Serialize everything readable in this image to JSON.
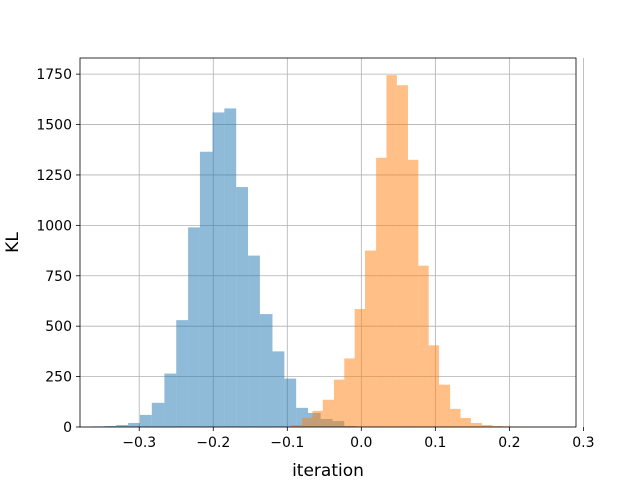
{
  "chart_data": {
    "type": "histogram",
    "xlabel": "iteration",
    "ylabel": "KL",
    "xlim": [
      -0.38,
      0.29
    ],
    "ylim": [
      0,
      1830
    ],
    "xticks": [
      -0.3,
      -0.2,
      -0.1,
      0.0,
      0.1,
      0.2,
      0.3
    ],
    "xtick_labels": [
      "−0.3",
      "−0.2",
      "−0.1",
      "0.0",
      "0.1",
      "0.2",
      "0.3"
    ],
    "yticks": [
      0,
      250,
      500,
      750,
      1000,
      1250,
      1500,
      1750
    ],
    "ytick_labels": [
      "0",
      "250",
      "500",
      "750",
      "1000",
      "1250",
      "1500",
      "1750"
    ],
    "grid": true,
    "series": [
      {
        "color": "#1f77b4",
        "alpha": 0.5,
        "bin_edges": [
          -0.365,
          -0.347,
          -0.331,
          -0.315,
          -0.299,
          -0.283,
          -0.266,
          -0.25,
          -0.234,
          -0.218,
          -0.201,
          -0.185,
          -0.169,
          -0.153,
          -0.137,
          -0.12,
          -0.104,
          -0.088,
          -0.072,
          -0.055,
          -0.039,
          -0.023,
          -0.007
        ],
        "counts": [
          3,
          5,
          10,
          20,
          60,
          120,
          265,
          530,
          990,
          1365,
          1560,
          1580,
          1190,
          850,
          560,
          375,
          240,
          95,
          70,
          40,
          30,
          5
        ]
      },
      {
        "color": "#ff7f0e",
        "alpha": 0.5,
        "bin_edges": [
          -0.095,
          -0.08,
          -0.066,
          -0.052,
          -0.037,
          -0.023,
          -0.009,
          0.005,
          0.02,
          0.034,
          0.048,
          0.063,
          0.077,
          0.091,
          0.105,
          0.12,
          0.134,
          0.148,
          0.163,
          0.177,
          0.191,
          0.205,
          0.22,
          0.234,
          0.248,
          0.27
        ],
        "counts": [
          10,
          45,
          80,
          135,
          235,
          340,
          585,
          875,
          1335,
          1745,
          1695,
          1325,
          800,
          405,
          210,
          90,
          45,
          20,
          10,
          5,
          3,
          2,
          1,
          1,
          1
        ]
      }
    ]
  }
}
